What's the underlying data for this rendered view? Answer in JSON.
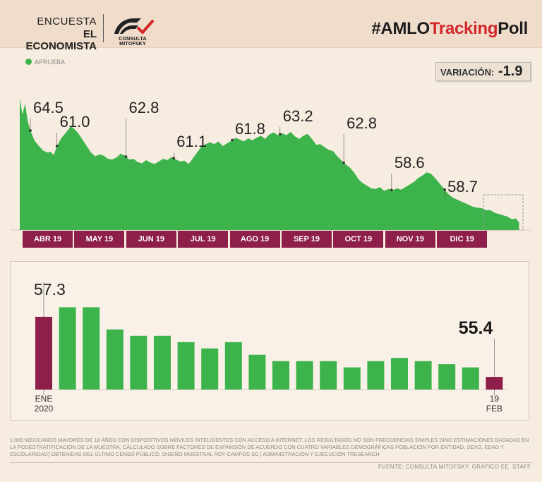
{
  "header": {
    "brand_line1": "ENCUESTA",
    "brand_line2": "EL ECONOMISTA",
    "logo_text": "CONSULTA MITOFSKY",
    "hashtag_a": "#AMLO",
    "hashtag_b": "Tracking",
    "hashtag_c": "Poll"
  },
  "legend": {
    "label": "APRUEBA"
  },
  "variation": {
    "label": "VARIACIÓN:",
    "value": "-1.9"
  },
  "colors": {
    "green": "#3cb44b",
    "maroon": "#8e1e4a",
    "red": "#d4262b",
    "background": "#f7ece0"
  },
  "chart_data": [
    {
      "type": "area",
      "series_name": "APRUEBA",
      "months": [
        "ABR 19",
        "MAY 19",
        "JUN 19",
        "JUL 19",
        "AGO 19",
        "SEP 19",
        "OCT 19",
        "NOV 19",
        "DIC 19"
      ],
      "annotations": [
        {
          "label": "64.5",
          "value": 64.5,
          "month_index": 0.2
        },
        {
          "label": "61.0",
          "value": 61.0,
          "month_index": 0.7
        },
        {
          "label": "62.8",
          "value": 62.8,
          "month_index": 2.0
        },
        {
          "label": "61.1",
          "value": 61.1,
          "month_index": 2.9
        },
        {
          "label": "61.8",
          "value": 61.8,
          "month_index": 4.0
        },
        {
          "label": "63.2",
          "value": 63.2,
          "month_index": 4.9
        },
        {
          "label": "62.8",
          "value": 62.8,
          "month_index": 6.1
        },
        {
          "label": "58.6",
          "value": 58.6,
          "month_index": 7.0
        },
        {
          "label": "58.7",
          "value": 58.7,
          "month_index": 8.0
        }
      ],
      "points": [
        [
          0.0,
          67.0
        ],
        [
          0.05,
          64.5
        ],
        [
          0.1,
          66.2
        ],
        [
          0.15,
          63.5
        ],
        [
          0.2,
          62.0
        ],
        [
          0.28,
          60.4
        ],
        [
          0.36,
          59.6
        ],
        [
          0.44,
          58.9
        ],
        [
          0.52,
          58.6
        ],
        [
          0.58,
          58.7
        ],
        [
          0.64,
          58.2
        ],
        [
          0.7,
          59.6
        ],
        [
          0.78,
          60.8
        ],
        [
          0.84,
          61.4
        ],
        [
          0.9,
          62.0
        ],
        [
          0.96,
          62.7
        ],
        [
          1.02,
          62.3
        ],
        [
          1.1,
          61.6
        ],
        [
          1.18,
          60.6
        ],
        [
          1.26,
          59.6
        ],
        [
          1.34,
          58.6
        ],
        [
          1.42,
          58.0
        ],
        [
          1.5,
          58.3
        ],
        [
          1.58,
          58.1
        ],
        [
          1.66,
          57.6
        ],
        [
          1.74,
          57.5
        ],
        [
          1.82,
          57.8
        ],
        [
          1.9,
          58.4
        ],
        [
          1.98,
          58.1
        ],
        [
          2.06,
          57.5
        ],
        [
          2.14,
          57.6
        ],
        [
          2.22,
          57.1
        ],
        [
          2.3,
          56.9
        ],
        [
          2.38,
          57.4
        ],
        [
          2.46,
          57.0
        ],
        [
          2.54,
          56.8
        ],
        [
          2.62,
          57.2
        ],
        [
          2.7,
          57.6
        ],
        [
          2.78,
          57.4
        ],
        [
          2.86,
          57.9
        ],
        [
          2.94,
          57.5
        ],
        [
          3.02,
          57.2
        ],
        [
          3.1,
          57.3
        ],
        [
          3.18,
          56.8
        ],
        [
          3.26,
          57.7
        ],
        [
          3.34,
          58.6
        ],
        [
          3.42,
          59.5
        ],
        [
          3.5,
          59.9
        ],
        [
          3.58,
          60.2
        ],
        [
          3.66,
          59.9
        ],
        [
          3.74,
          60.3
        ],
        [
          3.82,
          59.6
        ],
        [
          3.9,
          60.0
        ],
        [
          3.98,
          60.4
        ],
        [
          4.06,
          60.9
        ],
        [
          4.14,
          60.6
        ],
        [
          4.22,
          60.3
        ],
        [
          4.3,
          60.8
        ],
        [
          4.38,
          60.5
        ],
        [
          4.46,
          60.9
        ],
        [
          4.54,
          61.2
        ],
        [
          4.62,
          60.7
        ],
        [
          4.7,
          61.4
        ],
        [
          4.78,
          61.7
        ],
        [
          4.86,
          61.3
        ],
        [
          4.94,
          61.6
        ],
        [
          5.02,
          61.3
        ],
        [
          5.1,
          61.8
        ],
        [
          5.18,
          61.1
        ],
        [
          5.26,
          60.7
        ],
        [
          5.34,
          61.2
        ],
        [
          5.42,
          61.5
        ],
        [
          5.5,
          60.7
        ],
        [
          5.58,
          59.8
        ],
        [
          5.66,
          59.9
        ],
        [
          5.74,
          59.4
        ],
        [
          5.82,
          59.0
        ],
        [
          5.9,
          58.8
        ],
        [
          5.98,
          58.0
        ],
        [
          6.06,
          57.3
        ],
        [
          6.14,
          56.7
        ],
        [
          6.22,
          56.2
        ],
        [
          6.3,
          55.4
        ],
        [
          6.38,
          54.4
        ],
        [
          6.46,
          53.8
        ],
        [
          6.54,
          53.4
        ],
        [
          6.62,
          53.0
        ],
        [
          6.7,
          52.9
        ],
        [
          6.78,
          53.2
        ],
        [
          6.86,
          52.6
        ],
        [
          6.94,
          52.9
        ],
        [
          7.02,
          52.7
        ],
        [
          7.1,
          53.0
        ],
        [
          7.18,
          52.8
        ],
        [
          7.26,
          53.2
        ],
        [
          7.34,
          53.6
        ],
        [
          7.42,
          54.0
        ],
        [
          7.5,
          54.6
        ],
        [
          7.58,
          55.0
        ],
        [
          7.66,
          55.5
        ],
        [
          7.74,
          55.3
        ],
        [
          7.82,
          54.6
        ],
        [
          7.9,
          53.8
        ],
        [
          7.98,
          53.0
        ],
        [
          8.06,
          52.2
        ],
        [
          8.14,
          51.6
        ],
        [
          8.22,
          51.3
        ],
        [
          8.3,
          51.0
        ],
        [
          8.38,
          50.7
        ],
        [
          8.46,
          50.4
        ],
        [
          8.54,
          50.1
        ],
        [
          8.62,
          50.0
        ],
        [
          8.7,
          49.9
        ],
        [
          8.78,
          49.6
        ],
        [
          8.86,
          49.6
        ],
        [
          8.94,
          49.2
        ],
        [
          9.02,
          49.0
        ],
        [
          9.1,
          48.8
        ],
        [
          9.18,
          48.6
        ],
        [
          9.26,
          48.2
        ],
        [
          9.34,
          48.3
        ],
        [
          9.4,
          47.7
        ]
      ],
      "ylim": [
        46.5,
        68.5
      ],
      "xlim": [
        0,
        9.46
      ]
    },
    {
      "type": "bar",
      "categories": [
        "ENE 2020",
        "",
        "",
        "",
        "",
        "",
        "",
        "",
        "",
        "",
        "",
        "",
        "",
        "",
        "",
        "",
        "",
        "",
        "",
        "19 FEB"
      ],
      "values": [
        57.3,
        57.6,
        57.6,
        56.9,
        56.7,
        56.7,
        56.5,
        56.3,
        56.5,
        56.1,
        55.9,
        55.9,
        55.9,
        55.7,
        55.9,
        56.0,
        55.9,
        55.8,
        55.7,
        55.4
      ],
      "highlight_indices": [
        0,
        19
      ],
      "labels": [
        {
          "index": 0,
          "text": "57.3"
        },
        {
          "index": 19,
          "text": "55.4"
        }
      ],
      "first_label_line1": "ENE",
      "first_label_line2": "2020",
      "last_label_line1": "19",
      "last_label_line2": "FEB",
      "ylim": [
        55.0,
        57.9
      ]
    }
  ],
  "footnote": "1,000 MEXICANOS MAYORES DE 18 AÑOS CON DISPOSITIVOS MÓVILES INTELIGENTES CON ACCESO A INTERNET. LOS RESULTADOS NO SON FRECUENCIAS SIMPLES SINO ESTIMACIONES BASADAS EN LA POSESTRATIFICACIÓN DE LA MUESTRA, CALCULADO SOBRE FACTORES DE EXPANSIÓN DE ACUERDO CON CUATRO VARIABLES DEMOGRÁFICAS POBLACIÓN POR ENTIDAD, SEXO, EDAD Y ESCOLARIDAD) OBTENIDAS DEL ÚLTIMO CENSO PÚBLICO. DISEÑO MUESTRAL ROY CAMPOS SC | ADMINISTRACIÓN Y EJECUCIÓN TRESEARCH",
  "source": "FUENTE: CONSULTA MITOFSKY. GRÁFICO EE. STAFF."
}
